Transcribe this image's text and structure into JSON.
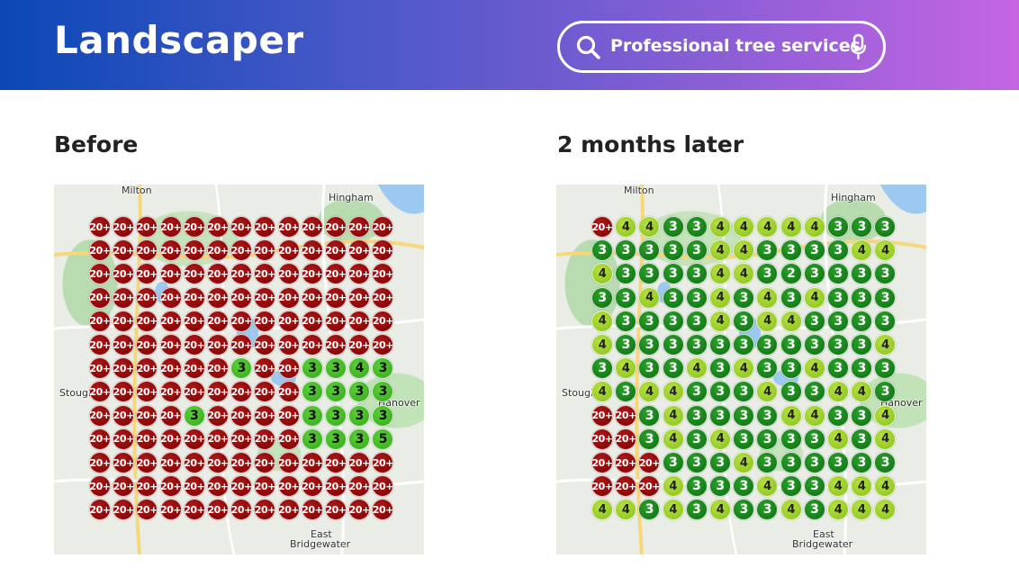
{
  "header": {
    "title": "Landscaper",
    "search": "Professional tree services"
  },
  "map_labels": [
    "Milton",
    "Hingham",
    "Hanover",
    "Stough",
    "East",
    "Bridgewater"
  ],
  "panels": [
    {
      "title": "Before",
      "grid": [
        [
          "20+",
          "20+",
          "20+",
          "20+",
          "20+",
          "20+",
          "20+",
          "20+",
          "20+",
          "20+",
          "20+",
          "20+",
          "20+"
        ],
        [
          "20+",
          "20+",
          "20+",
          "20+",
          "20+",
          "20+",
          "20+",
          "20+",
          "20+",
          "20+",
          "20+",
          "20+",
          "20+"
        ],
        [
          "20+",
          "20+",
          "20+",
          "20+",
          "20+",
          "20+",
          "20+",
          "20+",
          "20+",
          "20+",
          "20+",
          "20+",
          "20+"
        ],
        [
          "20+",
          "20+",
          "20+",
          "20+",
          "20+",
          "20+",
          "20+",
          "20+",
          "20+",
          "20+",
          "20+",
          "20+",
          "20+"
        ],
        [
          "20+",
          "20+",
          "20+",
          "20+",
          "20+",
          "20+",
          "20+",
          "20+",
          "20+",
          "20+",
          "20+",
          "20+",
          "20+"
        ],
        [
          "20+",
          "20+",
          "20+",
          "20+",
          "20+",
          "20+",
          "20+",
          "20+",
          "20+",
          "20+",
          "20+",
          "20+",
          "20+"
        ],
        [
          "20+",
          "20+",
          "20+",
          "20+",
          "20+",
          "20+",
          "3",
          "20+",
          "20+",
          "3",
          "3",
          "4",
          "3"
        ],
        [
          "20+",
          "20+",
          "20+",
          "20+",
          "20+",
          "20+",
          "20+",
          "20+",
          "20+",
          "3",
          "3",
          "3",
          "3"
        ],
        [
          "20+",
          "20+",
          "20+",
          "20+",
          "3",
          "20+",
          "20+",
          "20+",
          "20+",
          "3",
          "3",
          "3",
          "3"
        ],
        [
          "20+",
          "20+",
          "20+",
          "20+",
          "20+",
          "20+",
          "20+",
          "20+",
          "20+",
          "3",
          "3",
          "3",
          "5"
        ],
        [
          "20+",
          "20+",
          "20+",
          "20+",
          "20+",
          "20+",
          "20+",
          "20+",
          "20+",
          "20+",
          "20+",
          "20+",
          "20+"
        ],
        [
          "20+",
          "20+",
          "20+",
          "20+",
          "20+",
          "20+",
          "20+",
          "20+",
          "20+",
          "20+",
          "20+",
          "20+",
          "20+"
        ],
        [
          "20+",
          "20+",
          "20+",
          "20+",
          "20+",
          "20+",
          "20+",
          "20+",
          "20+",
          "20+",
          "20+",
          "20+",
          "20+"
        ]
      ]
    },
    {
      "title": "2 months later",
      "grid": [
        [
          "20+",
          "4",
          "4",
          "3",
          "3",
          "4",
          "4",
          "4",
          "4",
          "4",
          "3",
          "3",
          "3"
        ],
        [
          "3",
          "3",
          "3",
          "3",
          "3",
          "4",
          "4",
          "3",
          "3",
          "3",
          "3",
          "4",
          "4"
        ],
        [
          "4",
          "3",
          "3",
          "3",
          "3",
          "4",
          "4",
          "3",
          "2",
          "3",
          "3",
          "3",
          "3"
        ],
        [
          "3",
          "3",
          "4",
          "3",
          "3",
          "4",
          "3",
          "4",
          "3",
          "4",
          "3",
          "3",
          "3"
        ],
        [
          "4",
          "3",
          "3",
          "3",
          "3",
          "4",
          "3",
          "4",
          "4",
          "3",
          "3",
          "3",
          "3"
        ],
        [
          "4",
          "3",
          "3",
          "3",
          "3",
          "3",
          "3",
          "3",
          "3",
          "3",
          "3",
          "3",
          "4"
        ],
        [
          "3",
          "4",
          "3",
          "3",
          "4",
          "3",
          "4",
          "3",
          "3",
          "4",
          "3",
          "3",
          "3"
        ],
        [
          "4",
          "3",
          "4",
          "4",
          "3",
          "3",
          "3",
          "4",
          "3",
          "3",
          "4",
          "4",
          "3"
        ],
        [
          "20+",
          "20+",
          "3",
          "4",
          "3",
          "3",
          "3",
          "3",
          "4",
          "4",
          "3",
          "3",
          "4"
        ],
        [
          "20+",
          "20+",
          "3",
          "4",
          "3",
          "4",
          "3",
          "3",
          "3",
          "3",
          "4",
          "3",
          "4"
        ],
        [
          "20+",
          "20+",
          "20+",
          "3",
          "3",
          "3",
          "4",
          "3",
          "3",
          "3",
          "3",
          "3",
          "3"
        ],
        [
          "20+",
          "20+",
          "20+",
          "4",
          "3",
          "3",
          "3",
          "4",
          "3",
          "3",
          "4",
          "4",
          "4"
        ],
        [
          "4",
          "4",
          "3",
          "4",
          "3",
          "4",
          "3",
          "3",
          "4",
          "3",
          "4",
          "4",
          "4"
        ]
      ]
    }
  ]
}
